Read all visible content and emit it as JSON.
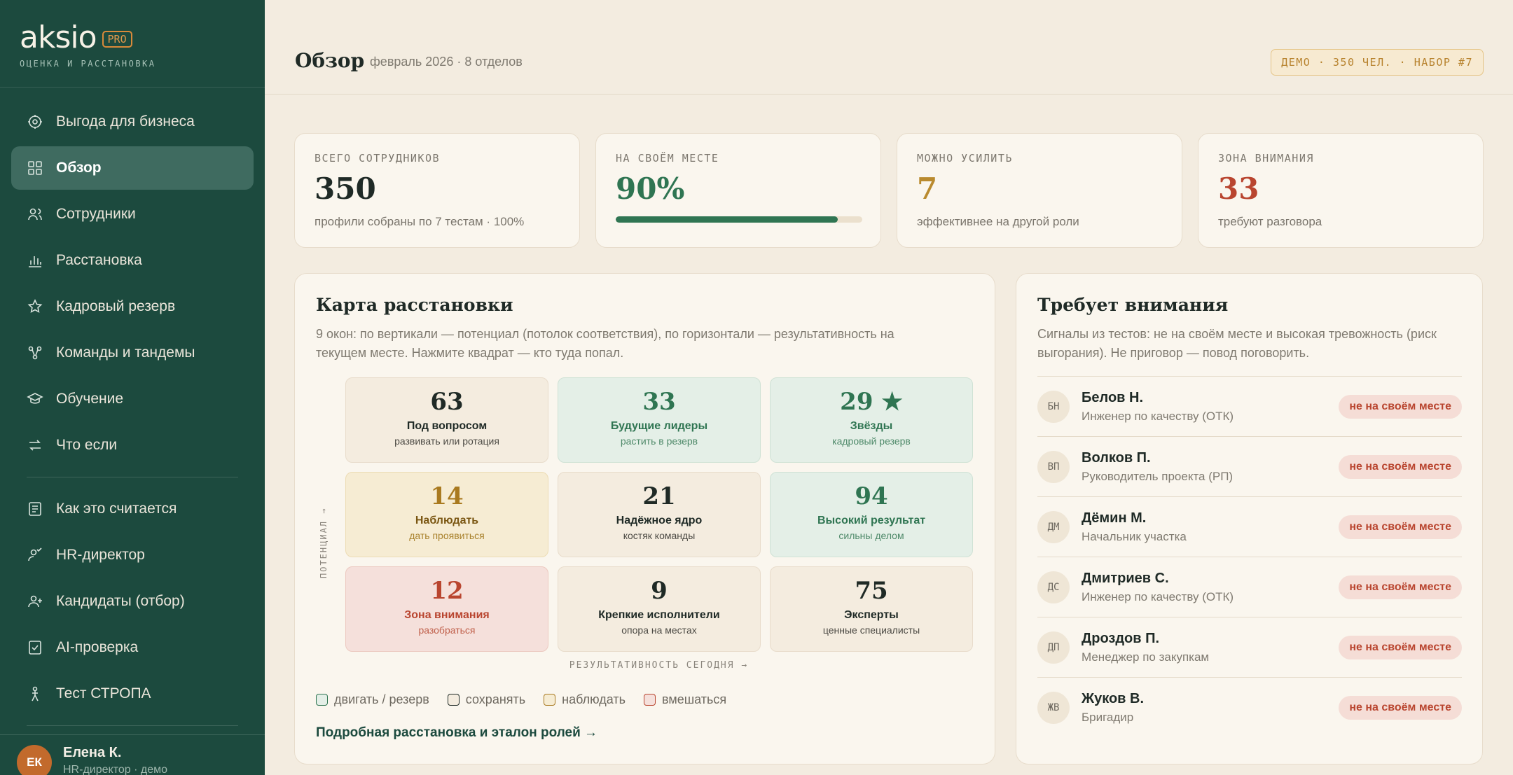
{
  "brand": {
    "name": "aksio",
    "badge": "PRO",
    "tagline": "ОЦЕНКА И РАССТАНОВКА"
  },
  "sidebar": {
    "items": [
      {
        "label": "Выгода для бизнеса",
        "icon": "target-icon"
      },
      {
        "label": "Обзор",
        "icon": "grid-icon",
        "active": true
      },
      {
        "label": "Сотрудники",
        "icon": "users-icon"
      },
      {
        "label": "Расстановка",
        "icon": "bar-chart-icon"
      },
      {
        "label": "Кадровый резерв",
        "icon": "star-icon"
      },
      {
        "label": "Команды и тандемы",
        "icon": "network-icon"
      },
      {
        "label": "Обучение",
        "icon": "graduation-cap-icon"
      },
      {
        "label": "Что если",
        "icon": "swap-icon"
      }
    ],
    "items2": [
      {
        "label": "Как это считается",
        "icon": "document-icon"
      },
      {
        "label": "HR-директор",
        "icon": "user-check-icon"
      },
      {
        "label": "Кандидаты (отбор)",
        "icon": "user-plus-icon"
      },
      {
        "label": "AI-проверка",
        "icon": "file-check-icon"
      },
      {
        "label": "Тест СТРОПА",
        "icon": "person-test-icon"
      }
    ],
    "user": {
      "initials": "ЕК",
      "name": "Елена К.",
      "role": "HR-директор · демо"
    }
  },
  "header": {
    "title": "Обзор",
    "subtitle": "февраль 2026 · 8 отделов",
    "badge": "ДЕМО · 350 ЧЕЛ. · НАБОР #7"
  },
  "kpis": [
    {
      "label": "ВСЕГО СОТРУДНИКОВ",
      "value": "350",
      "note": "профили собраны по 7 тестам · 100%",
      "color": "#1f2a26"
    },
    {
      "label": "НА СВОЁМ МЕСТЕ",
      "value": "90%",
      "progress": 0.9,
      "color": "#2f7552"
    },
    {
      "label": "МОЖНО УСИЛИТЬ",
      "value": "7",
      "note": "эффективнее на другой роли",
      "color": "#b98a2e"
    },
    {
      "label": "ЗОНА ВНИМАНИЯ",
      "value": "33",
      "note": "требуют разговора",
      "color": "#b9452f"
    }
  ],
  "map": {
    "title": "Карта расстановки",
    "description": "9 окон: по вертикали — потенциал (потолок соответствия), по горизонтали — результативность на текущем месте. Нажмите квадрат — кто туда попал.",
    "y_axis": "ПОТЕНЦИАЛ →",
    "x_axis": "РЕЗУЛЬТАТИВНОСТЬ СЕГОДНЯ →",
    "cells": [
      {
        "num": "63",
        "title": "Под вопросом",
        "sub": "развивать или ротация",
        "kind": "keep"
      },
      {
        "num": "33",
        "title": "Будущие лидеры",
        "sub": "растить в резерв",
        "kind": "move"
      },
      {
        "num": "29 ★",
        "title": "Звёзды",
        "sub": "кадровый резерв",
        "kind": "move"
      },
      {
        "num": "14",
        "title": "Наблюдать",
        "sub": "дать проявиться",
        "kind": "watch"
      },
      {
        "num": "21",
        "title": "Надёжное ядро",
        "sub": "костяк команды",
        "kind": "keep"
      },
      {
        "num": "94",
        "title": "Высокий результат",
        "sub": "сильны делом",
        "kind": "move"
      },
      {
        "num": "12",
        "title": "Зона внимания",
        "sub": "разобраться",
        "kind": "act"
      },
      {
        "num": "9",
        "title": "Крепкие исполнители",
        "sub": "опора на местах",
        "kind": "keep"
      },
      {
        "num": "75",
        "title": "Эксперты",
        "sub": "ценные специалисты",
        "kind": "keep"
      }
    ],
    "legend": [
      {
        "label": "двигать / резерв",
        "kind": "move"
      },
      {
        "label": "сохранять",
        "kind": "keep"
      },
      {
        "label": "наблюдать",
        "kind": "watch"
      },
      {
        "label": "вмешаться",
        "kind": "act"
      }
    ],
    "link": "Подробная расстановка и эталон ролей →"
  },
  "attention": {
    "title": "Требует внимания",
    "description": "Сигналы из тестов: не на своём месте и высокая тревожность (риск выгорания). Не приговор — повод поговорить.",
    "rows": [
      {
        "initials": "БН",
        "name": "Белов Н.",
        "role": "Инженер по качеству (ОТК)",
        "badge": "не на своём месте"
      },
      {
        "initials": "ВП",
        "name": "Волков П.",
        "role": "Руководитель проекта (РП)",
        "badge": "не на своём месте"
      },
      {
        "initials": "ДМ",
        "name": "Дёмин М.",
        "role": "Начальник участка",
        "badge": "не на своём месте"
      },
      {
        "initials": "ДС",
        "name": "Дмитриев С.",
        "role": "Инженер по качеству (ОТК)",
        "badge": "не на своём месте"
      },
      {
        "initials": "ДП",
        "name": "Дроздов П.",
        "role": "Менеджер по закупкам",
        "badge": "не на своём месте"
      },
      {
        "initials": "ЖВ",
        "name": "Жуков В.",
        "role": "Бригадир",
        "badge": "не на своём месте"
      }
    ]
  },
  "colors": {
    "move": {
      "bg": "#e4efe7",
      "border": "#cfe2d5",
      "num": "#2f7552",
      "title": "#2f7552",
      "sub": "#4f8a6a"
    },
    "keep": {
      "bg": "#f4ecdf",
      "border": "#e8dccb",
      "num": "#1f2a26",
      "title": "#1f2a26",
      "sub": "#4c4a44"
    },
    "watch": {
      "bg": "#f6ecd3",
      "border": "#ecdcb4",
      "num": "#a97a20",
      "title": "#7a5612",
      "sub": "#a9822d"
    },
    "act": {
      "bg": "#f5e0db",
      "border": "#ecc9c0",
      "num": "#b9452f",
      "title": "#b9452f",
      "sub": "#c0604b"
    }
  }
}
